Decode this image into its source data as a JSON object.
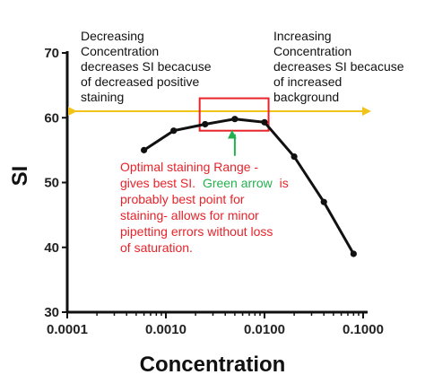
{
  "chart_data": {
    "type": "line",
    "xscale": "log",
    "xlim": [
      0.0001,
      0.1
    ],
    "ylim": [
      30,
      70
    ],
    "xlabel": "Concentration",
    "ylabel": "SI",
    "x_ticks": [
      "0.0001",
      "0.0010",
      "0.0100",
      "0.1000"
    ],
    "y_ticks": [
      "30",
      "40",
      "50",
      "60",
      "70"
    ],
    "series": [
      {
        "x": [
          0.0006,
          0.0012,
          0.0025,
          0.005,
          0.01,
          0.02,
          0.04,
          0.08
        ],
        "y": [
          55,
          58,
          59,
          59.8,
          59.3,
          54,
          47,
          39
        ]
      }
    ],
    "reference_line_y": 61,
    "highlight_x_range": [
      0.0022,
      0.011
    ],
    "highlight_y_range": [
      58,
      63
    ],
    "annotations": {
      "left_lines": [
        "Decreasing",
        "Concentration",
        "decreases SI becacuse",
        "of decreased positive",
        "staining"
      ],
      "right_lines": [
        "Increasing",
        "Concentration",
        "decreases SI becacuse",
        "of increased",
        "background"
      ],
      "optimal_lines": [
        "Optimal staining Range -",
        "gives best SI.",
        "Green arrow",
        "is",
        "probably best point for",
        "staining- allows for minor",
        "pipetting errors without loss",
        "of saturation."
      ]
    },
    "colors": {
      "line": "#111111",
      "reference_arrow": "#f2c318",
      "highlight_box": "#e8232a",
      "green_arrow": "#23b14d",
      "annotation_red": "#e8232a"
    }
  }
}
